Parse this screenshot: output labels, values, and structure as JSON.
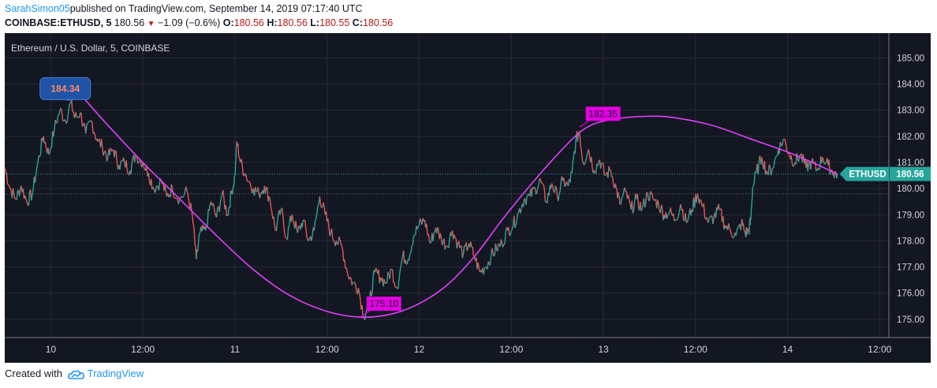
{
  "header": {
    "user": "SarahSimon05",
    "published": "published on TradingView.com, September 14, 2019 07:17:40 UTC",
    "symbol": "COINBASE:ETHUSD, 5",
    "last": "180.56",
    "change": "−1.09 (−0.6%)",
    "o_label": "O:",
    "o_value": "180.56",
    "h_label": "H:",
    "h_value": "180.56",
    "l_label": "L:",
    "l_value": "180.55",
    "c_label": "C:",
    "c_value": "180.56"
  },
  "footer": {
    "created_with": "Created with",
    "brand": "TradingView"
  },
  "colors": {
    "background": "#131722",
    "up": "#26a69a",
    "down": "#ef5350",
    "curve": "#e040fb",
    "callout_blue": "#1e53a6",
    "callout_magenta": "#e500e5",
    "last_price": "#26a69a"
  },
  "chart_data": {
    "type": "line",
    "title": "Ethereum / U.S. Dollar, 5, COINBASE",
    "xlabel": "",
    "ylabel": "",
    "ylim": [
      174.3,
      185.95
    ],
    "xlim": [
      -0.25,
      4.55
    ],
    "x_unit": "days since Sep 10, 2019 00:00 UTC",
    "x_ticks": [
      {
        "x": 0,
        "label": "10"
      },
      {
        "x": 0.5,
        "label": "12:00"
      },
      {
        "x": 1,
        "label": "11"
      },
      {
        "x": 1.5,
        "label": "12:00"
      },
      {
        "x": 2,
        "label": "12"
      },
      {
        "x": 2.5,
        "label": "12:00"
      },
      {
        "x": 3,
        "label": "13"
      },
      {
        "x": 3.5,
        "label": "12:00"
      },
      {
        "x": 4,
        "label": "14"
      },
      {
        "x": 4.5,
        "label": "12:00"
      }
    ],
    "y_ticks": [
      175.0,
      176.0,
      177.0,
      178.0,
      179.0,
      180.0,
      181.0,
      182.0,
      183.0,
      184.0,
      185.0
    ],
    "grid": true,
    "series": [
      {
        "name": "ETHUSD",
        "points": [
          [
            -0.25,
            180.8
          ],
          [
            -0.22,
            180.0
          ],
          [
            -0.19,
            179.6
          ],
          [
            -0.16,
            180.1
          ],
          [
            -0.13,
            179.5
          ],
          [
            -0.1,
            179.8
          ],
          [
            -0.07,
            181.0
          ],
          [
            -0.04,
            182.0
          ],
          [
            -0.01,
            181.3
          ],
          [
            0.02,
            182.3
          ],
          [
            0.05,
            183.0
          ],
          [
            0.08,
            182.6
          ],
          [
            0.11,
            183.3
          ],
          [
            0.13,
            182.7
          ],
          [
            0.16,
            182.9
          ],
          [
            0.19,
            182.1
          ],
          [
            0.22,
            182.6
          ],
          [
            0.25,
            181.9
          ],
          [
            0.28,
            181.6
          ],
          [
            0.31,
            181.2
          ],
          [
            0.34,
            181.5
          ],
          [
            0.37,
            180.9
          ],
          [
            0.4,
            181.0
          ],
          [
            0.43,
            180.7
          ],
          [
            0.46,
            181.3
          ],
          [
            0.5,
            181.0
          ],
          [
            0.53,
            180.6
          ],
          [
            0.56,
            180.0
          ],
          [
            0.6,
            180.3
          ],
          [
            0.63,
            179.7
          ],
          [
            0.66,
            180.0
          ],
          [
            0.7,
            179.6
          ],
          [
            0.74,
            179.9
          ],
          [
            0.77,
            178.9
          ],
          [
            0.79,
            177.3
          ],
          [
            0.81,
            178.3
          ],
          [
            0.84,
            178.4
          ],
          [
            0.87,
            179.5
          ],
          [
            0.9,
            178.9
          ],
          [
            0.93,
            179.8
          ],
          [
            0.96,
            179.0
          ],
          [
            0.98,
            179.8
          ],
          [
            1.0,
            180.5
          ],
          [
            1.01,
            181.8
          ],
          [
            1.03,
            181.0
          ],
          [
            1.06,
            180.5
          ],
          [
            1.1,
            180.0
          ],
          [
            1.13,
            179.8
          ],
          [
            1.16,
            180.1
          ],
          [
            1.19,
            179.6
          ],
          [
            1.22,
            178.4
          ],
          [
            1.25,
            179.2
          ],
          [
            1.28,
            178.1
          ],
          [
            1.31,
            179.0
          ],
          [
            1.34,
            178.3
          ],
          [
            1.37,
            178.8
          ],
          [
            1.4,
            178.0
          ],
          [
            1.43,
            178.4
          ],
          [
            1.46,
            179.7
          ],
          [
            1.49,
            179.0
          ],
          [
            1.52,
            178.3
          ],
          [
            1.55,
            178.0
          ],
          [
            1.58,
            177.8
          ],
          [
            1.61,
            176.8
          ],
          [
            1.64,
            176.4
          ],
          [
            1.67,
            176.2
          ],
          [
            1.7,
            175.1
          ],
          [
            1.73,
            175.7
          ],
          [
            1.76,
            176.8
          ],
          [
            1.79,
            176.6
          ],
          [
            1.82,
            176.4
          ],
          [
            1.85,
            176.9
          ],
          [
            1.88,
            176.2
          ],
          [
            1.91,
            177.4
          ],
          [
            1.94,
            177.3
          ],
          [
            1.97,
            178.2
          ],
          [
            2.0,
            178.6
          ],
          [
            2.03,
            178.8
          ],
          [
            2.06,
            177.9
          ],
          [
            2.09,
            178.5
          ],
          [
            2.12,
            178.1
          ],
          [
            2.15,
            177.8
          ],
          [
            2.18,
            178.4
          ],
          [
            2.21,
            177.9
          ],
          [
            2.24,
            177.5
          ],
          [
            2.27,
            177.9
          ],
          [
            2.3,
            177.4
          ],
          [
            2.33,
            176.8
          ],
          [
            2.36,
            177.0
          ],
          [
            2.39,
            177.4
          ],
          [
            2.42,
            177.7
          ],
          [
            2.45,
            177.9
          ],
          [
            2.48,
            178.4
          ],
          [
            2.51,
            178.6
          ],
          [
            2.54,
            179.1
          ],
          [
            2.57,
            179.6
          ],
          [
            2.6,
            179.7
          ],
          [
            2.63,
            180.0
          ],
          [
            2.66,
            180.3
          ],
          [
            2.69,
            179.5
          ],
          [
            2.72,
            180.2
          ],
          [
            2.75,
            179.7
          ],
          [
            2.78,
            180.3
          ],
          [
            2.81,
            180.1
          ],
          [
            2.83,
            180.6
          ],
          [
            2.85,
            181.8
          ],
          [
            2.87,
            182.2
          ],
          [
            2.89,
            181.0
          ],
          [
            2.92,
            181.5
          ],
          [
            2.95,
            180.7
          ],
          [
            2.98,
            181.1
          ],
          [
            3.01,
            180.5
          ],
          [
            3.04,
            180.7
          ],
          [
            3.07,
            180.0
          ],
          [
            3.09,
            179.4
          ],
          [
            3.12,
            179.9
          ],
          [
            3.15,
            179.2
          ],
          [
            3.18,
            179.6
          ],
          [
            3.21,
            179.2
          ],
          [
            3.24,
            179.8
          ],
          [
            3.27,
            179.6
          ],
          [
            3.3,
            179.4
          ],
          [
            3.33,
            179.0
          ],
          [
            3.36,
            179.1
          ],
          [
            3.39,
            178.8
          ],
          [
            3.42,
            179.4
          ],
          [
            3.45,
            178.7
          ],
          [
            3.48,
            179.2
          ],
          [
            3.51,
            179.8
          ],
          [
            3.54,
            179.3
          ],
          [
            3.57,
            178.7
          ],
          [
            3.6,
            178.9
          ],
          [
            3.63,
            179.2
          ],
          [
            3.66,
            178.6
          ],
          [
            3.69,
            178.4
          ],
          [
            3.72,
            178.2
          ],
          [
            3.75,
            178.7
          ],
          [
            3.77,
            178.3
          ],
          [
            3.79,
            178.4
          ],
          [
            3.8,
            178.8
          ],
          [
            3.81,
            180.0
          ],
          [
            3.83,
            180.6
          ],
          [
            3.86,
            181.2
          ],
          [
            3.89,
            180.6
          ],
          [
            3.92,
            180.8
          ],
          [
            3.95,
            181.5
          ],
          [
            3.98,
            181.9
          ],
          [
            4.01,
            181.3
          ],
          [
            4.04,
            181.0
          ],
          [
            4.07,
            181.3
          ],
          [
            4.1,
            180.8
          ],
          [
            4.13,
            181.0
          ],
          [
            4.16,
            180.7
          ],
          [
            4.19,
            181.2
          ],
          [
            4.22,
            180.9
          ],
          [
            4.25,
            180.6
          ],
          [
            4.27,
            180.56
          ]
        ]
      }
    ],
    "reference_line": 180.56,
    "dotted_line": 179.8,
    "curve_points": [
      [
        0.1,
        184.1
      ],
      [
        0.3,
        182.5
      ],
      [
        0.5,
        181.0
      ],
      [
        0.7,
        179.6
      ],
      [
        0.9,
        178.2
      ],
      [
        1.1,
        176.9
      ],
      [
        1.3,
        175.9
      ],
      [
        1.5,
        175.3
      ],
      [
        1.68,
        175.08
      ],
      [
        1.85,
        175.2
      ],
      [
        2.0,
        175.6
      ],
      [
        2.15,
        176.3
      ],
      [
        2.3,
        177.4
      ],
      [
        2.45,
        178.8
      ],
      [
        2.6,
        180.1
      ],
      [
        2.75,
        181.3
      ],
      [
        2.9,
        182.3
      ],
      [
        3.05,
        182.65
      ],
      [
        3.25,
        182.77
      ],
      [
        3.4,
        182.7
      ],
      [
        3.6,
        182.4
      ],
      [
        3.8,
        181.9
      ],
      [
        4.0,
        181.4
      ],
      [
        4.15,
        180.95
      ],
      [
        4.27,
        180.56
      ]
    ],
    "callouts": [
      {
        "label": "184.34",
        "x": 0.1,
        "y": 183.1,
        "style": "blue"
      },
      {
        "label": "182.35",
        "x": 2.87,
        "y": 182.35,
        "style": "magenta"
      },
      {
        "label": "175.10",
        "x": 1.68,
        "y": 175.08,
        "style": "magenta"
      }
    ],
    "last_price_label": {
      "name": "ETHUSD",
      "value": "180.56"
    }
  }
}
